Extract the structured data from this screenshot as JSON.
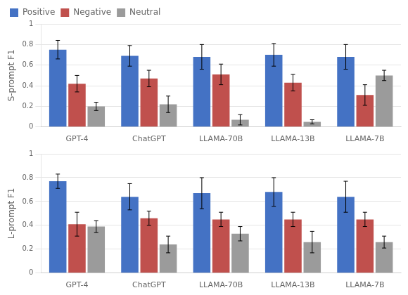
{
  "chart_data": [
    {
      "type": "bar",
      "categories": [
        "GPT-4",
        "ChatGPT",
        "LLAMA-70B",
        "LLAMA-13B",
        "LLAMA-7B"
      ],
      "series": [
        {
          "name": "Positive",
          "color": "#4472C4",
          "values": [
            0.75,
            0.69,
            0.68,
            0.7,
            0.68
          ],
          "errors": [
            0.09,
            0.1,
            0.12,
            0.11,
            0.12
          ]
        },
        {
          "name": "Negative",
          "color": "#C0504D",
          "values": [
            0.42,
            0.47,
            0.51,
            0.43,
            0.31
          ],
          "errors": [
            0.08,
            0.08,
            0.1,
            0.08,
            0.1
          ]
        },
        {
          "name": "Neutral",
          "color": "#9B9B9B",
          "values": [
            0.2,
            0.22,
            0.07,
            0.05,
            0.5
          ],
          "errors": [
            0.04,
            0.08,
            0.05,
            0.02,
            0.05
          ]
        }
      ],
      "ylabel": "S-prompt F1",
      "ylim": [
        0,
        1
      ],
      "yticks": [
        0,
        0.2,
        0.4,
        0.6,
        0.8,
        1
      ],
      "grid": true,
      "legend": "upper left"
    },
    {
      "type": "bar",
      "categories": [
        "GPT-4",
        "ChatGPT",
        "LLAMA-70B",
        "LLAMA-13B",
        "LLAMA-7B"
      ],
      "series": [
        {
          "name": "Positive",
          "color": "#4472C4",
          "values": [
            0.77,
            0.64,
            0.67,
            0.68,
            0.64
          ],
          "errors": [
            0.06,
            0.11,
            0.13,
            0.12,
            0.13
          ]
        },
        {
          "name": "Negative",
          "color": "#C0504D",
          "values": [
            0.41,
            0.46,
            0.45,
            0.45,
            0.45
          ],
          "errors": [
            0.1,
            0.06,
            0.06,
            0.06,
            0.06
          ]
        },
        {
          "name": "Neutral",
          "color": "#9B9B9B",
          "values": [
            0.39,
            0.24,
            0.33,
            0.26,
            0.26
          ],
          "errors": [
            0.05,
            0.07,
            0.06,
            0.09,
            0.05
          ]
        }
      ],
      "ylabel": "L-prompt F1",
      "ylim": [
        0,
        1
      ],
      "yticks": [
        0,
        0.2,
        0.4,
        0.6,
        0.8,
        1
      ],
      "grid": true
    }
  ]
}
